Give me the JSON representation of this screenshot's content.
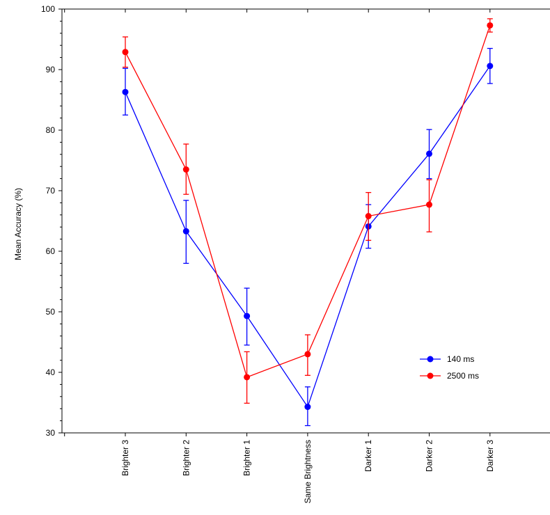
{
  "chart_data": {
    "type": "line",
    "title": "",
    "xlabel": "",
    "ylabel": "Mean Accuracy (%)",
    "ylim": [
      30,
      100
    ],
    "yticks": [
      30,
      40,
      50,
      60,
      70,
      80,
      90,
      100
    ],
    "categories": [
      "Brighter 3",
      "Brighter 2",
      "Brighter 1",
      "Same Brightness",
      "Darker 1",
      "Darker 2",
      "Darker 3"
    ],
    "grid": false,
    "legend_position": "lower-right",
    "series": [
      {
        "name": "140 ms",
        "color": "#0000ff",
        "values": [
          86.3,
          63.3,
          49.3,
          34.3,
          64.1,
          76.1,
          90.6
        ],
        "error_low": [
          82.5,
          58.0,
          44.5,
          31.2,
          60.5,
          72.0,
          87.7
        ],
        "error_high": [
          90.2,
          68.4,
          53.9,
          37.6,
          67.7,
          80.1,
          93.5
        ]
      },
      {
        "name": "2500 ms",
        "color": "#ff0000",
        "values": [
          92.9,
          73.5,
          39.2,
          43.0,
          65.8,
          67.7,
          97.3
        ],
        "error_low": [
          90.4,
          69.4,
          34.9,
          39.5,
          61.8,
          63.2,
          96.2
        ],
        "error_high": [
          95.4,
          77.7,
          43.4,
          46.2,
          69.7,
          71.8,
          98.4
        ]
      }
    ]
  }
}
